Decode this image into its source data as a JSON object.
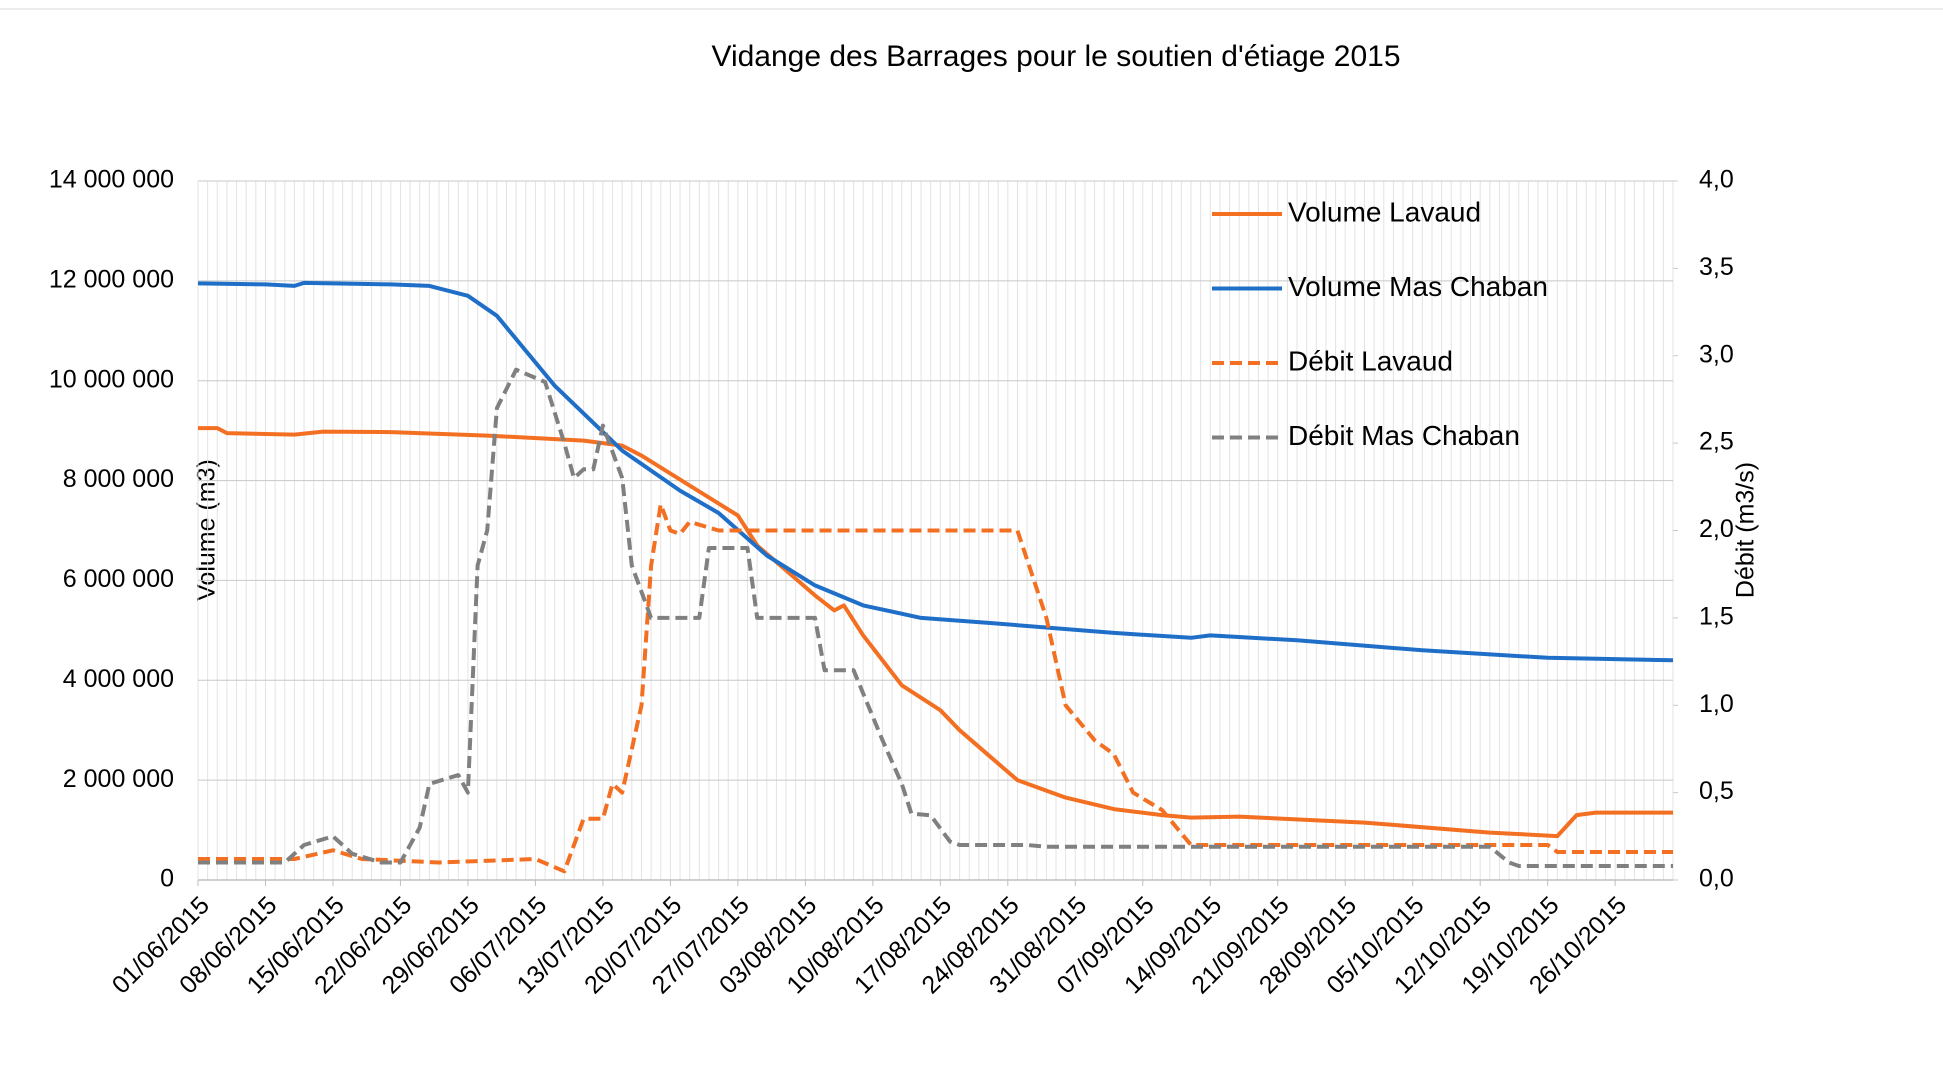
{
  "chart_data": {
    "type": "line",
    "title": "Vidange des Barrages pour le soutien d'étiage 2015",
    "ylabel": "Volume (m3)",
    "y2label": "Débit (m3/s)",
    "xlim": [
      "01/06/2015",
      "01/11/2015"
    ],
    "xticks": [
      "01/06/2015",
      "08/06/2015",
      "15/06/2015",
      "22/06/2015",
      "29/06/2015",
      "06/07/2015",
      "13/07/2015",
      "20/07/2015",
      "27/07/2015",
      "03/08/2015",
      "10/08/2015",
      "17/08/2015",
      "24/08/2015",
      "31/08/2015",
      "07/09/2015",
      "14/09/2015",
      "21/09/2015",
      "28/09/2015",
      "05/10/2015",
      "12/10/2015",
      "19/10/2015",
      "26/10/2015"
    ],
    "ylim": [
      0,
      14000000
    ],
    "yticks": [
      0,
      {
        "value": 2000000,
        "label": "2 000 000"
      },
      {
        "value": 4000000,
        "label": "4 000 000"
      },
      {
        "value": 6000000,
        "label": "6 000 000"
      },
      {
        "value": 8000000,
        "label": "8 000 000"
      },
      {
        "value": 10000000,
        "label": "10 000 000"
      },
      {
        "value": 12000000,
        "label": "12 000 000"
      },
      {
        "value": 14000000,
        "label": "14 000 000"
      }
    ],
    "y2lim": [
      0,
      4
    ],
    "y2ticks": [
      {
        "value": 0,
        "label": "0,0"
      },
      {
        "value": 0.5,
        "label": "0,5"
      },
      {
        "value": 1,
        "label": "1,0"
      },
      {
        "value": 1.5,
        "label": "1,5"
      },
      {
        "value": 2,
        "label": "2,0"
      },
      {
        "value": 2.5,
        "label": "2,5"
      },
      {
        "value": 3,
        "label": "3,0"
      },
      {
        "value": 3.5,
        "label": "3,5"
      },
      {
        "value": 4,
        "label": "4,0"
      }
    ],
    "grid": true,
    "legend": "upper right",
    "series": [
      {
        "name": "Volume Lavaud",
        "color": "#f36f21",
        "line_style": "solid",
        "x": [
          "01/06/2015",
          "03/06/2015",
          "04/06/2015",
          "11/06/2015",
          "14/06/2015",
          "21/06/2015",
          "01/07/2015",
          "11/07/2015",
          "15/07/2015",
          "17/07/2015",
          "22/07/2015",
          "27/07/2015",
          "29/07/2015",
          "04/08/2015",
          "06/08/2015",
          "07/08/2015",
          "09/08/2015",
          "13/08/2015",
          "17/08/2015",
          "19/08/2015",
          "22/08/2015",
          "25/08/2015",
          "30/08/2015",
          "04/09/2015",
          "09/09/2015",
          "12/09/2015",
          "17/09/2015",
          "30/09/2015",
          "13/10/2015",
          "20/10/2015",
          "22/10/2015",
          "24/10/2015",
          "01/11/2015"
        ],
        "values": [
          9050000,
          9050000,
          8950000,
          8920000,
          8980000,
          8970000,
          8900000,
          8800000,
          8700000,
          8500000,
          7900000,
          7300000,
          6700000,
          5700000,
          5400000,
          5500000,
          4900000,
          3900000,
          3400000,
          3000000,
          2500000,
          2000000,
          1650000,
          1420000,
          1300000,
          1250000,
          1270000,
          1150000,
          950000,
          880000,
          1300000,
          1350000,
          1350000
        ]
      },
      {
        "name": "Volume Mas Chaban",
        "color": "#1f6fc8",
        "line_style": "solid",
        "x": [
          "01/06/2015",
          "08/06/2015",
          "11/06/2015",
          "12/06/2015",
          "21/06/2015",
          "25/06/2015",
          "29/06/2015",
          "02/07/2015",
          "08/07/2015",
          "15/07/2015",
          "21/07/2015",
          "25/07/2015",
          "30/07/2015",
          "04/08/2015",
          "09/08/2015",
          "15/08/2015",
          "22/08/2015",
          "04/09/2015",
          "12/09/2015",
          "14/09/2015",
          "23/09/2015",
          "06/10/2015",
          "19/10/2015",
          "01/11/2015"
        ],
        "values": [
          11950000,
          11930000,
          11900000,
          11960000,
          11930000,
          11900000,
          11700000,
          11300000,
          9900000,
          8600000,
          7800000,
          7350000,
          6500000,
          5900000,
          5500000,
          5250000,
          5150000,
          4950000,
          4850000,
          4900000,
          4800000,
          4600000,
          4450000,
          4400000
        ]
      },
      {
        "name": "Débit Lavaud",
        "color": "#f36f21",
        "line_style": "dashed",
        "axis": "y2",
        "x": [
          "01/06/2015",
          "11/06/2015",
          "15/06/2015",
          "18/06/2015",
          "26/06/2015",
          "06/07/2015",
          "09/07/2015",
          "11/07/2015",
          "13/07/2015",
          "14/07/2015",
          "15/07/2015",
          "17/07/2015",
          "18/07/2015",
          "19/07/2015",
          "20/07/2015",
          "21/07/2015",
          "22/07/2015",
          "25/07/2015",
          "25/08/2015",
          "28/08/2015",
          "30/08/2015",
          "02/09/2015",
          "04/09/2015",
          "06/09/2015",
          "09/09/2015",
          "12/09/2015",
          "19/10/2015",
          "20/10/2015",
          "01/11/2015"
        ],
        "values": [
          0.12,
          0.12,
          0.17,
          0.12,
          0.1,
          0.12,
          0.05,
          0.35,
          0.35,
          0.55,
          0.5,
          1.0,
          1.8,
          2.15,
          2.0,
          1.98,
          2.05,
          2.0,
          2.0,
          1.5,
          1.0,
          0.8,
          0.72,
          0.5,
          0.4,
          0.2,
          0.2,
          0.16,
          0.16
        ]
      },
      {
        "name": "Débit Mas Chaban",
        "color": "#808080",
        "line_style": "dashed",
        "axis": "y2",
        "x": [
          "01/06/2015",
          "10/06/2015",
          "12/06/2015",
          "15/06/2015",
          "17/06/2015",
          "20/06/2015",
          "22/06/2015",
          "24/06/2015",
          "25/06/2015",
          "28/06/2015",
          "29/06/2015",
          "30/06/2015",
          "01/07/2015",
          "02/07/2015",
          "04/07/2015",
          "07/07/2015",
          "09/07/2015",
          "10/07/2015",
          "11/07/2015",
          "12/07/2015",
          "13/07/2015",
          "15/07/2015",
          "16/07/2015",
          "18/07/2015",
          "23/07/2015",
          "24/07/2015",
          "28/07/2015",
          "29/07/2015",
          "04/08/2015",
          "05/08/2015",
          "08/08/2015",
          "11/08/2015",
          "13/08/2015",
          "14/08/2015",
          "16/08/2015",
          "18/08/2015",
          "19/08/2015",
          "26/08/2015",
          "28/08/2015",
          "13/10/2015",
          "15/10/2015",
          "16/10/2015",
          "01/11/2015"
        ],
        "values": [
          0.1,
          0.1,
          0.2,
          0.25,
          0.15,
          0.1,
          0.1,
          0.3,
          0.55,
          0.6,
          0.5,
          1.8,
          2.0,
          2.7,
          2.92,
          2.85,
          2.5,
          2.3,
          2.35,
          2.35,
          2.6,
          2.3,
          1.8,
          1.5,
          1.5,
          1.9,
          1.9,
          1.5,
          1.5,
          1.2,
          1.2,
          0.8,
          0.55,
          0.38,
          0.37,
          0.22,
          0.2,
          0.2,
          0.19,
          0.19,
          0.1,
          0.08,
          0.08
        ]
      }
    ]
  }
}
